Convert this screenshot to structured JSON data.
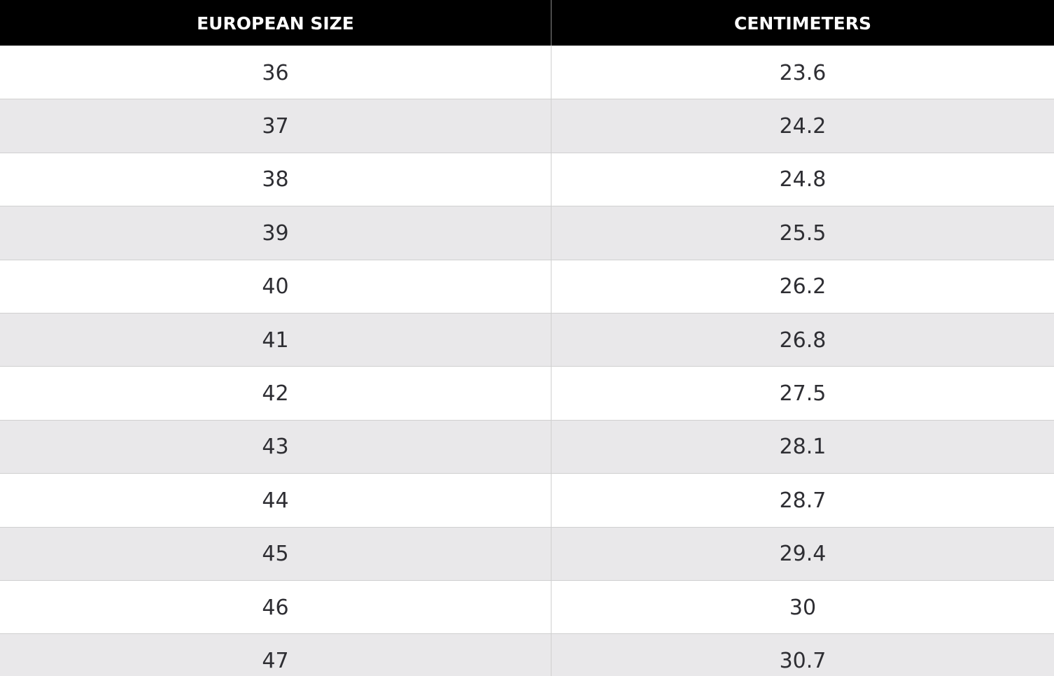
{
  "table": {
    "header": [
      "EUROPEAN SIZE",
      "CENTIMETERS"
    ],
    "rows": [
      [
        "36",
        "23.6"
      ],
      [
        "37",
        "24.2"
      ],
      [
        "38",
        "24.8"
      ],
      [
        "39",
        "25.5"
      ],
      [
        "40",
        "26.2"
      ],
      [
        "41",
        "26.8"
      ],
      [
        "42",
        "27.5"
      ],
      [
        "43",
        "28.1"
      ],
      [
        "44",
        "28.7"
      ],
      [
        "45",
        "29.4"
      ],
      [
        "46",
        "30"
      ],
      [
        "47",
        "30.7"
      ]
    ]
  }
}
